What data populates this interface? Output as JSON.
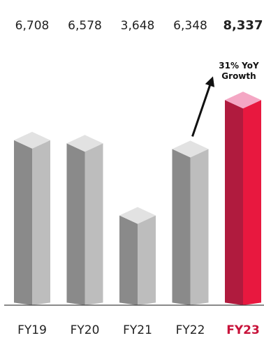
{
  "chart_data": {
    "type": "bar",
    "categories": [
      "FY19",
      "FY20",
      "FY21",
      "FY22",
      "FY23"
    ],
    "values": [
      6708,
      6578,
      3648,
      6348,
      8337
    ],
    "value_labels": [
      "6,708",
      "6,578",
      "3,648",
      "6,348",
      "8,337"
    ],
    "highlight_index": 4,
    "ylim": [
      0,
      8800
    ],
    "grid": false,
    "legend": "none",
    "annotation": {
      "line1": "31% YoY",
      "line2": "Growth"
    },
    "colors": {
      "bar_front": "#8a8a8a",
      "bar_side": "#bdbdbd",
      "bar_top": "#e2e2e2",
      "highlight_front": "#b01b3e",
      "highlight_side": "#e8183f",
      "highlight_top": "#f4a7c4",
      "axis": "#444444",
      "arrow": "#111111"
    }
  }
}
